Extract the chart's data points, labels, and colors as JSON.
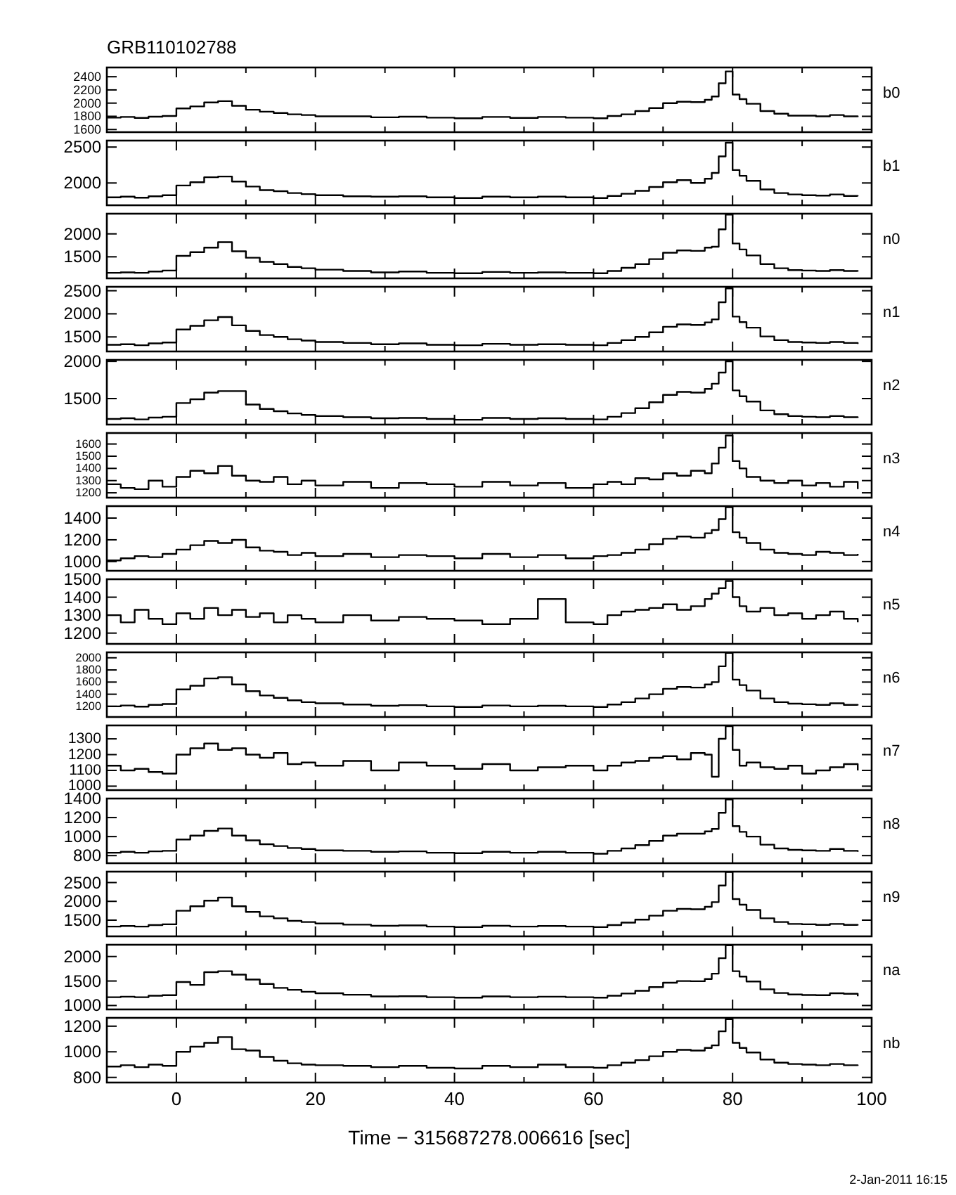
{
  "chart_data": [
    {
      "type": "step",
      "title": "GRB110102788",
      "x": [
        -10,
        -8,
        -6,
        -4,
        -2,
        0,
        2,
        4,
        6,
        8,
        10,
        12,
        14,
        16,
        18,
        20,
        24,
        28,
        32,
        36,
        40,
        44,
        48,
        52,
        56,
        60,
        62,
        64,
        66,
        68,
        70,
        72,
        74,
        76,
        77,
        78,
        79,
        80,
        81,
        82,
        84,
        86,
        88,
        90,
        92,
        94,
        96,
        98
      ],
      "series": [
        {
          "name": "b0",
          "color": "#000000",
          "values": [
            1780,
            1790,
            1775,
            1795,
            1805,
            1920,
            1950,
            2010,
            2030,
            1960,
            1900,
            1870,
            1850,
            1830,
            1820,
            1800,
            1800,
            1785,
            1795,
            1780,
            1770,
            1790,
            1775,
            1790,
            1780,
            1770,
            1805,
            1830,
            1880,
            1925,
            2000,
            2020,
            2015,
            2050,
            2100,
            2300,
            2480,
            2130,
            2060,
            1990,
            1880,
            1840,
            1810,
            1810,
            1800,
            1820,
            1800,
            1790
          ]
        }
      ],
      "xlim": [
        -10,
        100
      ],
      "xticks": [
        0,
        {
          "value": 10,
          "label": null
        },
        20,
        {
          "value": 30,
          "label": null
        },
        40,
        {
          "value": 50,
          "label": null
        },
        60,
        {
          "value": 70,
          "label": null
        },
        80,
        {
          "value": 90,
          "label": null
        },
        100
      ],
      "ylim": [
        1560,
        2540
      ],
      "yticks": [
        1600,
        1800,
        2000,
        2200,
        2400
      ],
      "tick_labels": "y"
    },
    {
      "type": "step",
      "x": [
        -10,
        -8,
        -6,
        -4,
        -2,
        0,
        2,
        4,
        6,
        8,
        10,
        12,
        14,
        16,
        18,
        20,
        24,
        28,
        32,
        36,
        40,
        44,
        48,
        52,
        56,
        60,
        62,
        64,
        66,
        68,
        70,
        72,
        74,
        76,
        77,
        78,
        79,
        80,
        81,
        82,
        84,
        86,
        88,
        90,
        92,
        94,
        96,
        98
      ],
      "series": [
        {
          "name": "b1",
          "color": "#000000",
          "values": [
            1800,
            1810,
            1795,
            1815,
            1830,
            1965,
            2010,
            2080,
            2090,
            2020,
            1950,
            1900,
            1885,
            1860,
            1845,
            1830,
            1815,
            1810,
            1815,
            1800,
            1790,
            1810,
            1800,
            1810,
            1800,
            1790,
            1820,
            1850,
            1890,
            1945,
            2010,
            2040,
            2000,
            2060,
            2140,
            2370,
            2560,
            2180,
            2100,
            2030,
            1910,
            1860,
            1840,
            1830,
            1825,
            1840,
            1820,
            1815
          ]
        }
      ],
      "xlim": [
        -10,
        100
      ],
      "xticks": [
        0,
        {
          "value": 10,
          "label": null
        },
        20,
        {
          "value": 30,
          "label": null
        },
        40,
        {
          "value": 50,
          "label": null
        },
        60,
        {
          "value": 70,
          "label": null
        },
        80,
        {
          "value": 90,
          "label": null
        },
        100
      ],
      "ylim": [
        1690,
        2590
      ],
      "yticks": [
        2000,
        2500
      ],
      "tick_labels": "y"
    },
    {
      "type": "step",
      "x": [
        -10,
        -8,
        -6,
        -4,
        -2,
        0,
        2,
        4,
        6,
        8,
        10,
        12,
        14,
        16,
        18,
        20,
        24,
        28,
        32,
        36,
        40,
        44,
        48,
        52,
        56,
        60,
        62,
        64,
        66,
        68,
        70,
        72,
        74,
        76,
        77,
        78,
        79,
        80,
        81,
        82,
        84,
        86,
        88,
        90,
        92,
        94,
        96,
        98
      ],
      "series": [
        {
          "name": "n0",
          "color": "#000000",
          "values": [
            1150,
            1160,
            1150,
            1180,
            1200,
            1520,
            1600,
            1700,
            1820,
            1620,
            1480,
            1390,
            1340,
            1280,
            1250,
            1220,
            1190,
            1160,
            1180,
            1150,
            1140,
            1170,
            1150,
            1160,
            1150,
            1140,
            1190,
            1260,
            1340,
            1450,
            1590,
            1640,
            1630,
            1700,
            1720,
            2100,
            2420,
            1790,
            1660,
            1530,
            1340,
            1250,
            1210,
            1200,
            1190,
            1210,
            1190,
            1180
          ]
        }
      ],
      "xlim": [
        -10,
        100
      ],
      "xticks": [
        0,
        {
          "value": 10,
          "label": null
        },
        20,
        {
          "value": 30,
          "label": null
        },
        40,
        {
          "value": 50,
          "label": null
        },
        60,
        {
          "value": 70,
          "label": null
        },
        80,
        {
          "value": 90,
          "label": null
        },
        100
      ],
      "ylim": [
        1030,
        2440
      ],
      "yticks": [
        1500,
        2000
      ],
      "tick_labels": "y"
    },
    {
      "type": "step",
      "x": [
        -10,
        -8,
        -6,
        -4,
        -2,
        0,
        2,
        4,
        6,
        8,
        10,
        12,
        14,
        16,
        18,
        20,
        24,
        28,
        32,
        36,
        40,
        44,
        48,
        52,
        56,
        60,
        62,
        64,
        66,
        68,
        70,
        72,
        74,
        76,
        77,
        78,
        79,
        80,
        81,
        82,
        84,
        86,
        88,
        90,
        92,
        94,
        96,
        98
      ],
      "series": [
        {
          "name": "n1",
          "color": "#000000",
          "values": [
            1330,
            1340,
            1320,
            1360,
            1380,
            1660,
            1740,
            1860,
            1930,
            1750,
            1630,
            1540,
            1500,
            1450,
            1420,
            1390,
            1370,
            1340,
            1360,
            1330,
            1320,
            1350,
            1330,
            1340,
            1330,
            1320,
            1370,
            1430,
            1500,
            1600,
            1720,
            1770,
            1760,
            1815,
            1880,
            2250,
            2550,
            1940,
            1820,
            1700,
            1510,
            1430,
            1390,
            1380,
            1370,
            1390,
            1370,
            1350
          ]
        }
      ],
      "xlim": [
        -10,
        100
      ],
      "xticks": [
        0,
        {
          "value": 10,
          "label": null
        },
        20,
        {
          "value": 30,
          "label": null
        },
        40,
        {
          "value": 50,
          "label": null
        },
        60,
        {
          "value": 70,
          "label": null
        },
        80,
        {
          "value": 90,
          "label": null
        },
        100
      ],
      "ylim": [
        1185,
        2585
      ],
      "yticks": [
        1500,
        2000,
        2500
      ],
      "tick_labels": "y"
    },
    {
      "type": "step",
      "x": [
        -10,
        -8,
        -6,
        -4,
        -2,
        0,
        2,
        4,
        6,
        8,
        10,
        12,
        14,
        16,
        18,
        20,
        24,
        28,
        32,
        36,
        40,
        44,
        48,
        52,
        56,
        60,
        62,
        64,
        66,
        68,
        70,
        72,
        74,
        76,
        77,
        78,
        79,
        80,
        81,
        82,
        84,
        86,
        88,
        90,
        92,
        94,
        96,
        98
      ],
      "series": [
        {
          "name": "n2",
          "color": "#000000",
          "values": [
            1225,
            1235,
            1220,
            1245,
            1255,
            1440,
            1490,
            1580,
            1600,
            1600,
            1420,
            1360,
            1330,
            1300,
            1280,
            1265,
            1250,
            1235,
            1240,
            1225,
            1215,
            1240,
            1225,
            1235,
            1225,
            1220,
            1255,
            1305,
            1370,
            1450,
            1550,
            1590,
            1580,
            1630,
            1700,
            1850,
            2000,
            1610,
            1530,
            1460,
            1340,
            1290,
            1265,
            1255,
            1250,
            1265,
            1250,
            1240
          ]
        }
      ],
      "xlim": [
        -10,
        100
      ],
      "xticks": [
        0,
        {
          "value": 10,
          "label": null
        },
        20,
        {
          "value": 30,
          "label": null
        },
        40,
        {
          "value": 50,
          "label": null
        },
        60,
        {
          "value": 70,
          "label": null
        },
        80,
        {
          "value": 90,
          "label": null
        },
        100
      ],
      "ylim": [
        1150,
        2020
      ],
      "yticks": [
        1500,
        2000
      ],
      "tick_labels": "y"
    },
    {
      "type": "step",
      "x": [
        -10,
        -8,
        -6,
        -4,
        -2,
        0,
        2,
        4,
        6,
        8,
        10,
        12,
        14,
        16,
        18,
        20,
        24,
        28,
        32,
        36,
        40,
        44,
        48,
        52,
        56,
        60,
        62,
        64,
        66,
        68,
        70,
        72,
        74,
        76,
        77,
        78,
        79,
        80,
        81,
        82,
        84,
        86,
        88,
        90,
        92,
        94,
        96,
        98
      ],
      "series": [
        {
          "name": "n3",
          "color": "#000000",
          "values": [
            1270,
            1240,
            1230,
            1300,
            1250,
            1330,
            1380,
            1360,
            1420,
            1340,
            1300,
            1290,
            1330,
            1270,
            1300,
            1260,
            1290,
            1240,
            1280,
            1270,
            1250,
            1290,
            1260,
            1280,
            1240,
            1270,
            1290,
            1270,
            1320,
            1310,
            1360,
            1340,
            1380,
            1360,
            1440,
            1570,
            1670,
            1460,
            1400,
            1330,
            1300,
            1280,
            1300,
            1260,
            1280,
            1250,
            1290,
            1230
          ]
        }
      ],
      "xlim": [
        -10,
        100
      ],
      "xticks": [
        0,
        {
          "value": 10,
          "label": null
        },
        20,
        {
          "value": 30,
          "label": null
        },
        40,
        {
          "value": 50,
          "label": null
        },
        60,
        {
          "value": 70,
          "label": null
        },
        80,
        {
          "value": 90,
          "label": null
        },
        100
      ],
      "ylim": [
        1160,
        1690
      ],
      "yticks": [
        1200,
        1300,
        1400,
        1500,
        1600
      ],
      "tick_labels": "y"
    },
    {
      "type": "step",
      "x": [
        -10,
        -8,
        -6,
        -4,
        -2,
        0,
        2,
        4,
        6,
        8,
        10,
        12,
        14,
        16,
        18,
        20,
        24,
        28,
        32,
        36,
        40,
        44,
        48,
        52,
        56,
        60,
        62,
        64,
        66,
        68,
        70,
        72,
        74,
        76,
        77,
        78,
        79,
        80,
        81,
        82,
        84,
        86,
        88,
        90,
        92,
        94,
        96,
        98
      ],
      "series": [
        {
          "name": "n4",
          "color": "#000000",
          "values": [
            1010,
            1030,
            1050,
            1040,
            1070,
            1110,
            1150,
            1190,
            1170,
            1200,
            1130,
            1100,
            1090,
            1060,
            1080,
            1050,
            1070,
            1040,
            1060,
            1050,
            1030,
            1070,
            1040,
            1060,
            1030,
            1050,
            1060,
            1080,
            1110,
            1160,
            1210,
            1230,
            1220,
            1260,
            1290,
            1390,
            1500,
            1270,
            1220,
            1170,
            1110,
            1080,
            1070,
            1060,
            1090,
            1080,
            1060,
            1070
          ]
        }
      ],
      "xlim": [
        -10,
        100
      ],
      "xticks": [
        0,
        {
          "value": 10,
          "label": null
        },
        20,
        {
          "value": 30,
          "label": null
        },
        40,
        {
          "value": 50,
          "label": null
        },
        60,
        {
          "value": 70,
          "label": null
        },
        80,
        {
          "value": 90,
          "label": null
        },
        100
      ],
      "ylim": [
        915,
        1510
      ],
      "yticks": [
        1000,
        1200,
        1400
      ],
      "tick_labels": "y"
    },
    {
      "type": "step",
      "x": [
        -10,
        -8,
        -6,
        -4,
        -2,
        0,
        2,
        4,
        6,
        8,
        10,
        12,
        14,
        16,
        18,
        20,
        24,
        28,
        32,
        36,
        40,
        44,
        48,
        52,
        56,
        60,
        62,
        64,
        66,
        68,
        70,
        72,
        74,
        76,
        77,
        78,
        79,
        80,
        81,
        82,
        84,
        86,
        88,
        90,
        92,
        94,
        96,
        98
      ],
      "series": [
        {
          "name": "n5",
          "color": "#000000",
          "values": [
            1300,
            1260,
            1330,
            1280,
            1250,
            1310,
            1280,
            1340,
            1300,
            1330,
            1290,
            1310,
            1260,
            1300,
            1280,
            1260,
            1300,
            1270,
            1290,
            1280,
            1270,
            1250,
            1280,
            1390,
            1260,
            1250,
            1300,
            1320,
            1330,
            1340,
            1360,
            1330,
            1350,
            1390,
            1420,
            1450,
            1490,
            1400,
            1350,
            1320,
            1340,
            1300,
            1310,
            1280,
            1300,
            1320,
            1280,
            1260
          ]
        }
      ],
      "xlim": [
        -10,
        100
      ],
      "xticks": [
        0,
        {
          "value": 10,
          "label": null
        },
        20,
        {
          "value": 30,
          "label": null
        },
        40,
        {
          "value": 50,
          "label": null
        },
        60,
        {
          "value": 70,
          "label": null
        },
        80,
        {
          "value": 90,
          "label": null
        },
        100
      ],
      "ylim": [
        1140,
        1500
      ],
      "yticks": [
        1200,
        1300,
        1400,
        1500
      ],
      "tick_labels": "y"
    },
    {
      "type": "step",
      "x": [
        -10,
        -8,
        -6,
        -4,
        -2,
        0,
        2,
        4,
        6,
        8,
        10,
        12,
        14,
        16,
        18,
        20,
        24,
        28,
        32,
        36,
        40,
        44,
        48,
        52,
        56,
        60,
        62,
        64,
        66,
        68,
        70,
        72,
        74,
        76,
        77,
        78,
        79,
        80,
        81,
        82,
        84,
        86,
        88,
        90,
        92,
        94,
        96,
        98
      ],
      "series": [
        {
          "name": "n6",
          "color": "#000000",
          "values": [
            1200,
            1215,
            1195,
            1225,
            1240,
            1480,
            1540,
            1660,
            1680,
            1560,
            1450,
            1380,
            1340,
            1300,
            1270,
            1250,
            1230,
            1210,
            1220,
            1200,
            1190,
            1215,
            1200,
            1210,
            1200,
            1190,
            1230,
            1270,
            1330,
            1400,
            1490,
            1520,
            1510,
            1560,
            1600,
            1860,
            2080,
            1640,
            1550,
            1460,
            1330,
            1270,
            1245,
            1235,
            1225,
            1250,
            1225,
            1215
          ]
        }
      ],
      "xlim": [
        -10,
        100
      ],
      "xticks": [
        0,
        {
          "value": 10,
          "label": null
        },
        20,
        {
          "value": 30,
          "label": null
        },
        40,
        {
          "value": 50,
          "label": null
        },
        60,
        {
          "value": 70,
          "label": null
        },
        80,
        {
          "value": 90,
          "label": null
        },
        100
      ],
      "ylim": [
        1025,
        2090
      ],
      "yticks": [
        1200,
        1400,
        1600,
        1800,
        2000
      ],
      "tick_labels": "y"
    },
    {
      "type": "step",
      "x": [
        -10,
        -8,
        -6,
        -4,
        -2,
        0,
        2,
        4,
        6,
        8,
        10,
        12,
        14,
        16,
        18,
        20,
        24,
        28,
        32,
        36,
        40,
        44,
        48,
        52,
        56,
        60,
        62,
        64,
        66,
        68,
        70,
        72,
        74,
        76,
        77,
        78,
        79,
        80,
        81,
        82,
        84,
        86,
        88,
        90,
        92,
        94,
        96,
        98
      ],
      "series": [
        {
          "name": "n7",
          "color": "#000000",
          "values": [
            1130,
            1100,
            1110,
            1090,
            1080,
            1200,
            1240,
            1270,
            1230,
            1240,
            1200,
            1180,
            1210,
            1140,
            1150,
            1130,
            1160,
            1100,
            1150,
            1130,
            1110,
            1140,
            1100,
            1120,
            1130,
            1100,
            1130,
            1150,
            1160,
            1180,
            1190,
            1170,
            1210,
            1200,
            1060,
            1300,
            1380,
            1230,
            1130,
            1150,
            1120,
            1110,
            1130,
            1080,
            1100,
            1120,
            1140,
            1100
          ]
        }
      ],
      "xlim": [
        -10,
        100
      ],
      "xticks": [
        0,
        {
          "value": 10,
          "label": null
        },
        20,
        {
          "value": 30,
          "label": null
        },
        40,
        {
          "value": 50,
          "label": null
        },
        60,
        {
          "value": 70,
          "label": null
        },
        80,
        {
          "value": 90,
          "label": null
        },
        100
      ],
      "ylim": [
        975,
        1385
      ],
      "yticks": [
        1000,
        1100,
        1200,
        1300
      ],
      "tick_labels": "y"
    },
    {
      "type": "step",
      "x": [
        -10,
        -8,
        -6,
        -4,
        -2,
        0,
        2,
        4,
        6,
        8,
        10,
        12,
        14,
        16,
        18,
        20,
        24,
        28,
        32,
        36,
        40,
        44,
        48,
        52,
        56,
        60,
        62,
        64,
        66,
        68,
        70,
        72,
        74,
        76,
        77,
        78,
        79,
        80,
        81,
        82,
        84,
        86,
        88,
        90,
        92,
        94,
        96,
        98
      ],
      "series": [
        {
          "name": "n8",
          "color": "#000000",
          "values": [
            830,
            840,
            830,
            845,
            850,
            970,
            1010,
            1060,
            1085,
            1010,
            960,
            920,
            900,
            880,
            870,
            855,
            850,
            840,
            845,
            830,
            825,
            840,
            830,
            840,
            830,
            820,
            850,
            875,
            910,
            955,
            1010,
            1030,
            1030,
            1055,
            1080,
            1250,
            1390,
            1110,
            1050,
            1000,
            915,
            875,
            860,
            855,
            850,
            870,
            850,
            840
          ]
        }
      ],
      "xlim": [
        -10,
        100
      ],
      "xticks": [
        0,
        {
          "value": 10,
          "label": null
        },
        20,
        {
          "value": 30,
          "label": null
        },
        40,
        {
          "value": 50,
          "label": null
        },
        60,
        {
          "value": 70,
          "label": null
        },
        80,
        {
          "value": 90,
          "label": null
        },
        100
      ],
      "ylim": [
        720,
        1400
      ],
      "yticks": [
        800,
        1000,
        1200,
        1400
      ],
      "tick_labels": "y"
    },
    {
      "type": "step",
      "x": [
        -10,
        -8,
        -6,
        -4,
        -2,
        0,
        2,
        4,
        6,
        8,
        10,
        12,
        14,
        16,
        18,
        20,
        24,
        28,
        32,
        36,
        40,
        44,
        48,
        52,
        56,
        60,
        62,
        64,
        66,
        68,
        70,
        72,
        74,
        76,
        77,
        78,
        79,
        80,
        81,
        82,
        84,
        86,
        88,
        90,
        92,
        94,
        96,
        98
      ],
      "series": [
        {
          "name": "n9",
          "color": "#000000",
          "values": [
            1330,
            1345,
            1330,
            1370,
            1390,
            1750,
            1870,
            2020,
            2100,
            1870,
            1720,
            1600,
            1550,
            1480,
            1450,
            1410,
            1380,
            1350,
            1360,
            1330,
            1315,
            1350,
            1330,
            1345,
            1330,
            1315,
            1370,
            1435,
            1515,
            1620,
            1750,
            1800,
            1790,
            1855,
            1980,
            2420,
            2780,
            2060,
            1910,
            1770,
            1550,
            1450,
            1400,
            1390,
            1375,
            1400,
            1375,
            1360
          ]
        }
      ],
      "xlim": [
        -10,
        100
      ],
      "xticks": [
        0,
        {
          "value": 10,
          "label": null
        },
        20,
        {
          "value": 30,
          "label": null
        },
        40,
        {
          "value": 50,
          "label": null
        },
        60,
        {
          "value": 70,
          "label": null
        },
        80,
        {
          "value": 90,
          "label": null
        },
        100
      ],
      "ylim": [
        1070,
        2790
      ],
      "yticks": [
        1500,
        2000,
        2500
      ],
      "tick_labels": "y"
    },
    {
      "type": "step",
      "x": [
        -10,
        -8,
        -6,
        -4,
        -2,
        0,
        2,
        4,
        6,
        8,
        10,
        12,
        14,
        16,
        18,
        20,
        24,
        28,
        32,
        36,
        40,
        44,
        48,
        52,
        56,
        60,
        62,
        64,
        66,
        68,
        70,
        72,
        74,
        76,
        77,
        78,
        79,
        80,
        81,
        82,
        84,
        86,
        88,
        90,
        92,
        94,
        96,
        98
      ],
      "series": [
        {
          "name": "na",
          "color": "#000000",
          "values": [
            1170,
            1180,
            1170,
            1200,
            1210,
            1480,
            1420,
            1680,
            1700,
            1630,
            1530,
            1440,
            1360,
            1320,
            1280,
            1250,
            1220,
            1185,
            1190,
            1170,
            1160,
            1185,
            1170,
            1180,
            1170,
            1160,
            1200,
            1245,
            1300,
            1375,
            1465,
            1500,
            1495,
            1540,
            1650,
            1965,
            2230,
            1700,
            1590,
            1490,
            1330,
            1255,
            1225,
            1215,
            1210,
            1250,
            1240,
            1190
          ]
        }
      ],
      "xlim": [
        -10,
        100
      ],
      "xticks": [
        0,
        {
          "value": 10,
          "label": null
        },
        20,
        {
          "value": 30,
          "label": null
        },
        40,
        {
          "value": 50,
          "label": null
        },
        60,
        {
          "value": 70,
          "label": null
        },
        80,
        {
          "value": 90,
          "label": null
        },
        100
      ],
      "ylim": [
        920,
        2240
      ],
      "yticks": [
        1000,
        1500,
        2000
      ],
      "tick_labels": "y"
    },
    {
      "type": "step",
      "xlabel": "Time − 315687278.006616 [sec]",
      "annotations": [
        "2-Jan-2011 16:15"
      ],
      "x": [
        -10,
        -8,
        -6,
        -4,
        -2,
        0,
        2,
        4,
        6,
        8,
        10,
        12,
        14,
        16,
        18,
        20,
        24,
        28,
        32,
        36,
        40,
        44,
        48,
        52,
        56,
        60,
        62,
        64,
        66,
        68,
        70,
        72,
        74,
        76,
        77,
        78,
        79,
        80,
        81,
        82,
        84,
        86,
        88,
        90,
        92,
        94,
        96,
        98
      ],
      "series": [
        {
          "name": "nb",
          "color": "#000000",
          "values": [
            885,
            895,
            880,
            900,
            890,
            1000,
            1040,
            1070,
            1115,
            1020,
            1010,
            960,
            930,
            910,
            900,
            895,
            890,
            880,
            890,
            875,
            870,
            890,
            880,
            900,
            880,
            875,
            895,
            915,
            935,
            965,
            1000,
            1015,
            1010,
            1030,
            1050,
            1160,
            1255,
            1070,
            1030,
            995,
            940,
            915,
            905,
            900,
            895,
            905,
            895,
            890
          ]
        }
      ],
      "xlim": [
        -10,
        100
      ],
      "xticks": [
        {
          "value": 0,
          "label": "0"
        },
        {
          "value": 10,
          "label": null
        },
        {
          "value": 20,
          "label": "20"
        },
        {
          "value": 30,
          "label": null
        },
        {
          "value": 40,
          "label": "40"
        },
        {
          "value": 50,
          "label": null
        },
        {
          "value": 60,
          "label": "60"
        },
        {
          "value": 70,
          "label": null
        },
        {
          "value": 80,
          "label": "80"
        },
        {
          "value": 90,
          "label": null
        },
        {
          "value": 100,
          "label": "100"
        }
      ],
      "ylim": [
        760,
        1265
      ],
      "yticks": [
        800,
        1000,
        1200
      ]
    }
  ]
}
